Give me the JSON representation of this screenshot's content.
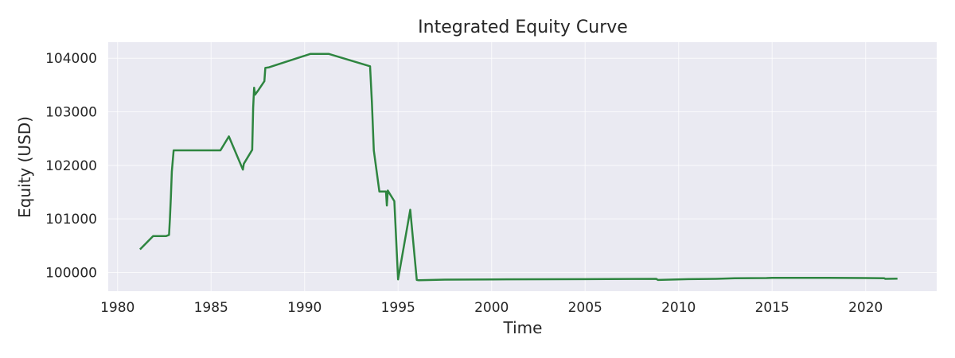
{
  "chart_data": {
    "type": "line",
    "title": "Integrated Equity Curve",
    "xlabel": "Time",
    "ylabel": "Equity (USD)",
    "xlim": [
      1979.5,
      2023.8
    ],
    "ylim": [
      99650,
      104300
    ],
    "x_ticks": [
      1980,
      1985,
      1990,
      1995,
      2000,
      2005,
      2010,
      2015,
      2020
    ],
    "y_ticks": [
      100000,
      101000,
      102000,
      103000,
      104000
    ],
    "grid": true,
    "colors": {
      "background": "#eaeaf2",
      "grid": "#ffffff",
      "line": "#2e8540",
      "text": "#262626"
    },
    "series": [
      {
        "x": [
          1981.2,
          1981.9,
          1982.6,
          1982.75,
          1982.8,
          1982.85,
          1982.9,
          1983.0,
          1985.5,
          1985.95,
          1986.7,
          1986.75,
          1987.2,
          1987.25,
          1987.3,
          1987.35,
          1987.5,
          1987.85,
          1987.9,
          1988.1,
          1990.3,
          1991.3,
          1993.5,
          1993.6,
          1993.7,
          1994.0,
          1994.35,
          1994.4,
          1994.45,
          1994.55,
          1994.8,
          1995.0,
          1995.65,
          1996.0,
          1996.1,
          1997.5,
          2000.0,
          2005.0,
          2008.8,
          2008.9,
          2010.5,
          2012.0,
          2013.0,
          2014.7,
          2015.0,
          2018.0,
          2020.0,
          2021.0,
          2021.05,
          2021.7
        ],
        "y": [
          100430,
          100680,
          100680,
          100700,
          101000,
          101400,
          101880,
          102280,
          102280,
          102540,
          101920,
          102030,
          102290,
          103070,
          103450,
          103320,
          103390,
          103570,
          103820,
          103830,
          104080,
          104080,
          103850,
          103180,
          102280,
          101510,
          101510,
          101250,
          101530,
          101470,
          101330,
          99870,
          101170,
          99860,
          99855,
          99865,
          99870,
          99875,
          99880,
          99860,
          99875,
          99880,
          99890,
          99895,
          99900,
          99900,
          99895,
          99890,
          99880,
          99885
        ]
      }
    ]
  }
}
